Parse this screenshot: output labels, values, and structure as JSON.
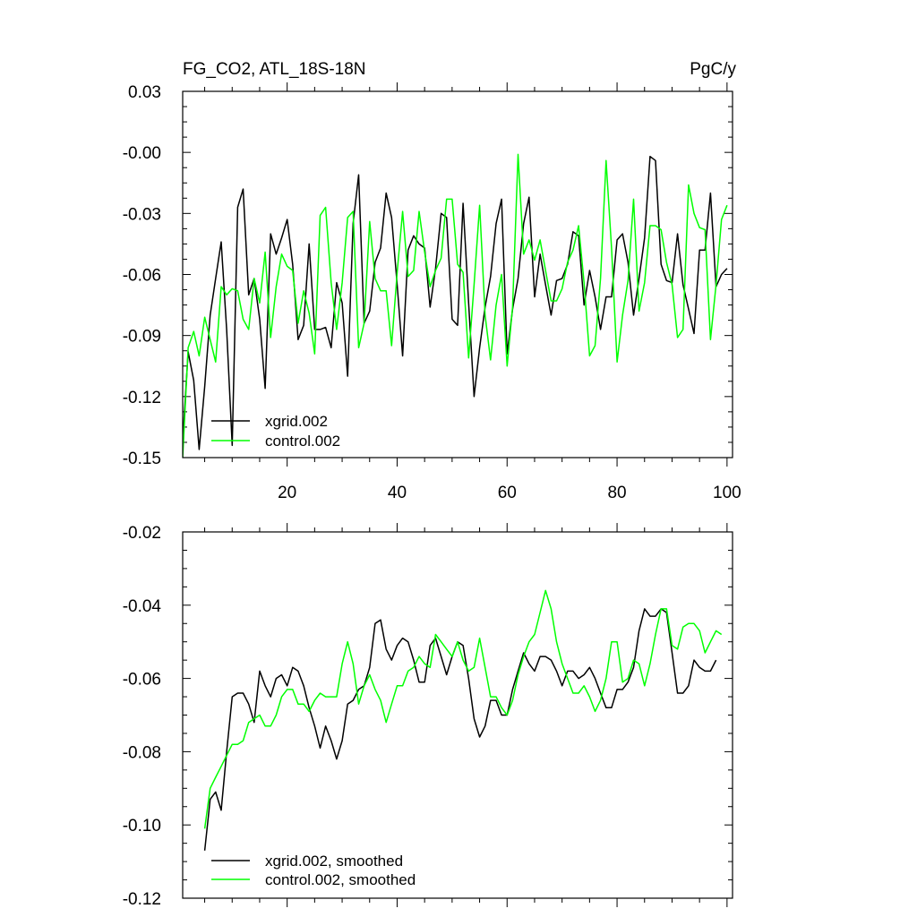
{
  "chart_data": [
    {
      "type": "line",
      "title": "FG_CO2, ATL_18S-18N",
      "units": "PgC/y",
      "xlabel": "",
      "ylabel": "",
      "xlim": [
        1,
        101
      ],
      "ylim": [
        -0.15,
        0.03
      ],
      "xticks": [
        20,
        40,
        60,
        80,
        100
      ],
      "xtick_labels": [
        "20",
        "40",
        "60",
        "80",
        "100"
      ],
      "yticks": [
        0.03,
        0.0,
        -0.03,
        -0.06,
        -0.09,
        -0.12,
        -0.15
      ],
      "ytick_labels": [
        "0.03",
        "-0.00",
        "-0.03",
        "-0.06",
        "-0.09",
        "-0.12",
        "-0.15"
      ],
      "grid": false,
      "legend_position": "bottom-left",
      "x_start": 1,
      "series": [
        {
          "name": "xgrid.002",
          "color": "#000000",
          "values": [
            -0.142,
            -0.098,
            -0.112,
            -0.146,
            -0.115,
            -0.08,
            -0.062,
            -0.044,
            -0.087,
            -0.144,
            -0.027,
            -0.018,
            -0.07,
            -0.062,
            -0.082,
            -0.116,
            -0.04,
            -0.05,
            -0.042,
            -0.033,
            -0.055,
            -0.092,
            -0.085,
            -0.045,
            -0.087,
            -0.087,
            -0.086,
            -0.096,
            -0.064,
            -0.074,
            -0.11,
            -0.035,
            -0.011,
            -0.084,
            -0.078,
            -0.054,
            -0.047,
            -0.02,
            -0.032,
            -0.065,
            -0.1,
            -0.048,
            -0.041,
            -0.045,
            -0.047,
            -0.076,
            -0.057,
            -0.03,
            -0.032,
            -0.082,
            -0.085,
            -0.025,
            -0.074,
            -0.12,
            -0.096,
            -0.076,
            -0.061,
            -0.035,
            -0.023,
            -0.099,
            -0.077,
            -0.062,
            -0.035,
            -0.022,
            -0.071,
            -0.05,
            -0.065,
            -0.08,
            -0.063,
            -0.062,
            -0.055,
            -0.039,
            -0.041,
            -0.075,
            -0.058,
            -0.071,
            -0.087,
            -0.071,
            -0.071,
            -0.043,
            -0.04,
            -0.054,
            -0.08,
            -0.062,
            -0.042,
            -0.002,
            -0.004,
            -0.055,
            -0.063,
            -0.064,
            -0.04,
            -0.065,
            -0.077,
            -0.089,
            -0.048,
            -0.048,
            -0.02,
            -0.066,
            -0.06,
            -0.057
          ]
        },
        {
          "name": "control.002",
          "color": "#00ff00",
          "values": [
            -0.15,
            -0.096,
            -0.088,
            -0.1,
            -0.081,
            -0.092,
            -0.103,
            -0.066,
            -0.07,
            -0.067,
            -0.068,
            -0.082,
            -0.087,
            -0.062,
            -0.074,
            -0.049,
            -0.091,
            -0.066,
            -0.05,
            -0.056,
            -0.058,
            -0.084,
            -0.068,
            -0.079,
            -0.099,
            -0.031,
            -0.027,
            -0.064,
            -0.087,
            -0.064,
            -0.032,
            -0.029,
            -0.096,
            -0.084,
            -0.034,
            -0.062,
            -0.068,
            -0.068,
            -0.095,
            -0.059,
            -0.029,
            -0.061,
            -0.058,
            -0.029,
            -0.049,
            -0.066,
            -0.058,
            -0.052,
            -0.023,
            -0.023,
            -0.055,
            -0.059,
            -0.101,
            -0.065,
            -0.026,
            -0.08,
            -0.102,
            -0.075,
            -0.06,
            -0.105,
            -0.076,
            -0.001,
            -0.05,
            -0.043,
            -0.053,
            -0.043,
            -0.058,
            -0.073,
            -0.073,
            -0.067,
            -0.054,
            -0.048,
            -0.036,
            -0.064,
            -0.1,
            -0.095,
            -0.062,
            -0.004,
            -0.047,
            -0.103,
            -0.08,
            -0.063,
            -0.023,
            -0.078,
            -0.064,
            -0.036,
            -0.036,
            -0.038,
            -0.054,
            -0.065,
            -0.091,
            -0.087,
            -0.016,
            -0.03,
            -0.037,
            -0.038,
            -0.092,
            -0.065,
            -0.033,
            -0.026
          ]
        }
      ]
    },
    {
      "type": "line",
      "title": "",
      "xlabel": "",
      "ylabel": "",
      "xlim": [
        1,
        101
      ],
      "ylim": [
        -0.12,
        -0.02
      ],
      "yticks": [
        -0.02,
        -0.04,
        -0.06,
        -0.08,
        -0.1,
        -0.12
      ],
      "ytick_labels": [
        "-0.02",
        "-0.04",
        "-0.06",
        "-0.08",
        "-0.10",
        "-0.12"
      ],
      "grid": false,
      "legend_position": "bottom-left",
      "x_start": 5,
      "series": [
        {
          "name": "xgrid.002, smoothed",
          "color": "#000000",
          "values": [
            -0.107,
            -0.093,
            -0.091,
            -0.096,
            -0.08,
            -0.065,
            -0.064,
            -0.064,
            -0.067,
            -0.072,
            -0.058,
            -0.062,
            -0.065,
            -0.06,
            -0.059,
            -0.062,
            -0.057,
            -0.058,
            -0.062,
            -0.068,
            -0.073,
            -0.079,
            -0.073,
            -0.077,
            -0.082,
            -0.077,
            -0.067,
            -0.066,
            -0.063,
            -0.062,
            -0.057,
            -0.045,
            -0.044,
            -0.052,
            -0.055,
            -0.051,
            -0.049,
            -0.05,
            -0.055,
            -0.061,
            -0.061,
            -0.051,
            -0.049,
            -0.054,
            -0.059,
            -0.054,
            -0.05,
            -0.051,
            -0.06,
            -0.071,
            -0.076,
            -0.073,
            -0.066,
            -0.066,
            -0.07,
            -0.07,
            -0.063,
            -0.058,
            -0.053,
            -0.056,
            -0.058,
            -0.054,
            -0.054,
            -0.055,
            -0.058,
            -0.062,
            -0.058,
            -0.058,
            -0.06,
            -0.059,
            -0.057,
            -0.06,
            -0.064,
            -0.068,
            -0.068,
            -0.063,
            -0.063,
            -0.061,
            -0.057,
            -0.047,
            -0.041,
            -0.043,
            -0.043,
            -0.041,
            -0.042,
            -0.053,
            -0.064,
            -0.064,
            -0.062,
            -0.055,
            -0.057,
            -0.058,
            -0.058,
            -0.055
          ]
        },
        {
          "name": "control.002, smoothed",
          "color": "#00ff00",
          "values": [
            -0.101,
            -0.09,
            -0.087,
            -0.084,
            -0.081,
            -0.078,
            -0.078,
            -0.077,
            -0.072,
            -0.071,
            -0.07,
            -0.073,
            -0.073,
            -0.07,
            -0.065,
            -0.063,
            -0.063,
            -0.067,
            -0.067,
            -0.069,
            -0.066,
            -0.064,
            -0.065,
            -0.065,
            -0.065,
            -0.056,
            -0.05,
            -0.056,
            -0.067,
            -0.062,
            -0.059,
            -0.063,
            -0.066,
            -0.072,
            -0.067,
            -0.062,
            -0.062,
            -0.058,
            -0.057,
            -0.054,
            -0.056,
            -0.057,
            -0.048,
            -0.05,
            -0.052,
            -0.054,
            -0.05,
            -0.055,
            -0.058,
            -0.057,
            -0.049,
            -0.057,
            -0.065,
            -0.065,
            -0.068,
            -0.07,
            -0.066,
            -0.059,
            -0.054,
            -0.05,
            -0.048,
            -0.042,
            -0.036,
            -0.041,
            -0.05,
            -0.056,
            -0.06,
            -0.064,
            -0.064,
            -0.062,
            -0.065,
            -0.069,
            -0.066,
            -0.06,
            -0.05,
            -0.05,
            -0.061,
            -0.06,
            -0.055,
            -0.056,
            -0.062,
            -0.056,
            -0.048,
            -0.041,
            -0.041,
            -0.051,
            -0.052,
            -0.046,
            -0.045,
            -0.045,
            -0.047,
            -0.053,
            -0.05,
            -0.047,
            -0.048
          ]
        }
      ]
    }
  ]
}
